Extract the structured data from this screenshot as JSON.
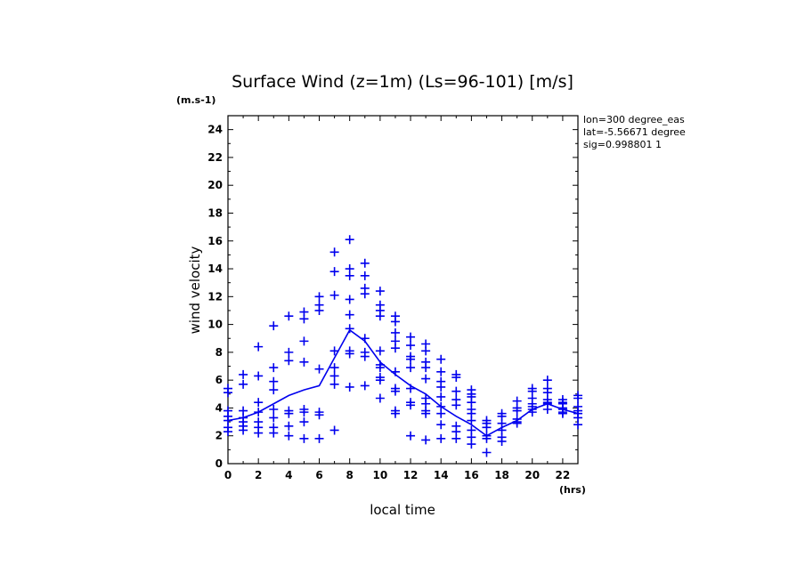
{
  "chart_data": {
    "type": "scatter",
    "title": "Surface Wind (z=1m) (Ls=96-101) [m/s]",
    "units_label": "(m.s-1)",
    "xlabel": "local time",
    "xunits_label": "(hrs)",
    "ylabel": "wind velocity",
    "xlim": [
      0,
      23
    ],
    "ylim": [
      0,
      25
    ],
    "xticks": [
      0,
      2,
      4,
      6,
      8,
      10,
      12,
      14,
      16,
      18,
      20,
      22
    ],
    "yticks": [
      0,
      2,
      4,
      6,
      8,
      10,
      12,
      14,
      16,
      18,
      20,
      22,
      24
    ],
    "info": [
      "lon=300 degree_eas",
      "lat=-5.56671 degree",
      "sig=0.998801 1"
    ],
    "color": "#0000ee",
    "mean_series": {
      "x": [
        0,
        1,
        2,
        3,
        4,
        5,
        6,
        7,
        8,
        9,
        10,
        11,
        12,
        13,
        14,
        15,
        16,
        17,
        18,
        19,
        20,
        21,
        22,
        23
      ],
      "y": [
        3.1,
        3.3,
        3.7,
        4.3,
        4.9,
        5.3,
        5.6,
        7.6,
        9.6,
        8.8,
        7.3,
        6.4,
        5.6,
        5.0,
        4.1,
        3.4,
        2.8,
        2.0,
        2.6,
        3.1,
        3.9,
        4.3,
        3.9,
        3.6
      ]
    },
    "points": [
      [
        0,
        5.4
      ],
      [
        0,
        5.1
      ],
      [
        0,
        3.8
      ],
      [
        0,
        3.4
      ],
      [
        0,
        3.1
      ],
      [
        0,
        2.6
      ],
      [
        0,
        2.3
      ],
      [
        1,
        6.4
      ],
      [
        1,
        5.7
      ],
      [
        1,
        3.8
      ],
      [
        1,
        3.3
      ],
      [
        1,
        3.0
      ],
      [
        1,
        2.7
      ],
      [
        1,
        2.4
      ],
      [
        2,
        8.4
      ],
      [
        2,
        6.3
      ],
      [
        2,
        4.4
      ],
      [
        2,
        3.7
      ],
      [
        2,
        3.0
      ],
      [
        2,
        2.6
      ],
      [
        2,
        2.2
      ],
      [
        3,
        9.9
      ],
      [
        3,
        6.9
      ],
      [
        3,
        5.9
      ],
      [
        3,
        5.3
      ],
      [
        3,
        3.9
      ],
      [
        3,
        3.3
      ],
      [
        3,
        2.6
      ],
      [
        3,
        2.2
      ],
      [
        4,
        10.6
      ],
      [
        4,
        8.0
      ],
      [
        4,
        7.4
      ],
      [
        4,
        3.8
      ],
      [
        4,
        3.6
      ],
      [
        4,
        2.7
      ],
      [
        4,
        2.0
      ],
      [
        5,
        10.9
      ],
      [
        5,
        10.4
      ],
      [
        5,
        8.8
      ],
      [
        5,
        7.3
      ],
      [
        5,
        3.9
      ],
      [
        5,
        3.7
      ],
      [
        5,
        3.0
      ],
      [
        5,
        1.8
      ],
      [
        6,
        12.0
      ],
      [
        6,
        11.4
      ],
      [
        6,
        11.0
      ],
      [
        6,
        6.8
      ],
      [
        6,
        3.7
      ],
      [
        6,
        3.5
      ],
      [
        6,
        1.8
      ],
      [
        7,
        15.2
      ],
      [
        7,
        13.8
      ],
      [
        7,
        12.1
      ],
      [
        7,
        8.1
      ],
      [
        7,
        6.9
      ],
      [
        7,
        6.3
      ],
      [
        7,
        5.7
      ],
      [
        7,
        2.4
      ],
      [
        8,
        16.1
      ],
      [
        8,
        14.0
      ],
      [
        8,
        13.5
      ],
      [
        8,
        11.8
      ],
      [
        8,
        10.7
      ],
      [
        8,
        9.7
      ],
      [
        8,
        8.1
      ],
      [
        8,
        7.9
      ],
      [
        8,
        5.5
      ],
      [
        9,
        14.4
      ],
      [
        9,
        13.5
      ],
      [
        9,
        12.6
      ],
      [
        9,
        12.2
      ],
      [
        9,
        9.0
      ],
      [
        9,
        8.0
      ],
      [
        9,
        7.7
      ],
      [
        9,
        5.6
      ],
      [
        10,
        12.4
      ],
      [
        10,
        11.4
      ],
      [
        10,
        11.0
      ],
      [
        10,
        10.6
      ],
      [
        10,
        8.1
      ],
      [
        10,
        7.1
      ],
      [
        10,
        6.9
      ],
      [
        10,
        6.2
      ],
      [
        10,
        6.0
      ],
      [
        10,
        4.7
      ],
      [
        11,
        10.6
      ],
      [
        11,
        10.2
      ],
      [
        11,
        9.4
      ],
      [
        11,
        8.8
      ],
      [
        11,
        8.3
      ],
      [
        11,
        6.6
      ],
      [
        11,
        5.4
      ],
      [
        11,
        5.2
      ],
      [
        11,
        3.8
      ],
      [
        11,
        3.6
      ],
      [
        12,
        9.1
      ],
      [
        12,
        8.5
      ],
      [
        12,
        7.7
      ],
      [
        12,
        7.5
      ],
      [
        12,
        6.9
      ],
      [
        12,
        5.4
      ],
      [
        12,
        4.4
      ],
      [
        12,
        4.2
      ],
      [
        12,
        2.0
      ],
      [
        13,
        8.6
      ],
      [
        13,
        8.1
      ],
      [
        13,
        7.3
      ],
      [
        13,
        6.9
      ],
      [
        13,
        6.1
      ],
      [
        13,
        4.7
      ],
      [
        13,
        4.3
      ],
      [
        13,
        3.8
      ],
      [
        13,
        3.6
      ],
      [
        13,
        1.7
      ],
      [
        14,
        7.5
      ],
      [
        14,
        6.6
      ],
      [
        14,
        5.9
      ],
      [
        14,
        5.5
      ],
      [
        14,
        4.8
      ],
      [
        14,
        4.1
      ],
      [
        14,
        3.6
      ],
      [
        14,
        2.8
      ],
      [
        14,
        1.8
      ],
      [
        15,
        6.4
      ],
      [
        15,
        6.2
      ],
      [
        15,
        5.2
      ],
      [
        15,
        4.6
      ],
      [
        15,
        4.2
      ],
      [
        15,
        2.7
      ],
      [
        15,
        2.3
      ],
      [
        15,
        1.8
      ],
      [
        16,
        5.3
      ],
      [
        16,
        5.0
      ],
      [
        16,
        4.8
      ],
      [
        16,
        4.4
      ],
      [
        16,
        3.9
      ],
      [
        16,
        3.6
      ],
      [
        16,
        3.1
      ],
      [
        16,
        2.4
      ],
      [
        16,
        1.9
      ],
      [
        16,
        1.4
      ],
      [
        17,
        3.1
      ],
      [
        17,
        2.9
      ],
      [
        17,
        2.6
      ],
      [
        17,
        2.0
      ],
      [
        17,
        1.8
      ],
      [
        17,
        0.8
      ],
      [
        18,
        3.6
      ],
      [
        18,
        3.4
      ],
      [
        18,
        2.9
      ],
      [
        18,
        2.4
      ],
      [
        18,
        1.9
      ],
      [
        18,
        1.6
      ],
      [
        19,
        4.5
      ],
      [
        19,
        4.0
      ],
      [
        19,
        3.8
      ],
      [
        19,
        3.2
      ],
      [
        19,
        3.0
      ],
      [
        19,
        2.9
      ],
      [
        20,
        5.4
      ],
      [
        20,
        5.2
      ],
      [
        20,
        4.7
      ],
      [
        20,
        4.3
      ],
      [
        20,
        4.1
      ],
      [
        20,
        3.9
      ],
      [
        20,
        3.7
      ],
      [
        21,
        6.0
      ],
      [
        21,
        5.4
      ],
      [
        21,
        5.1
      ],
      [
        21,
        4.6
      ],
      [
        21,
        4.4
      ],
      [
        21,
        4.3
      ],
      [
        21,
        3.9
      ],
      [
        22,
        4.6
      ],
      [
        22,
        4.4
      ],
      [
        22,
        4.3
      ],
      [
        22,
        4.0
      ],
      [
        22,
        3.9
      ],
      [
        22,
        3.7
      ],
      [
        22,
        3.6
      ],
      [
        23,
        4.9
      ],
      [
        23,
        4.7
      ],
      [
        23,
        4.1
      ],
      [
        23,
        3.8
      ],
      [
        23,
        3.6
      ],
      [
        23,
        3.3
      ],
      [
        23,
        2.8
      ]
    ]
  }
}
